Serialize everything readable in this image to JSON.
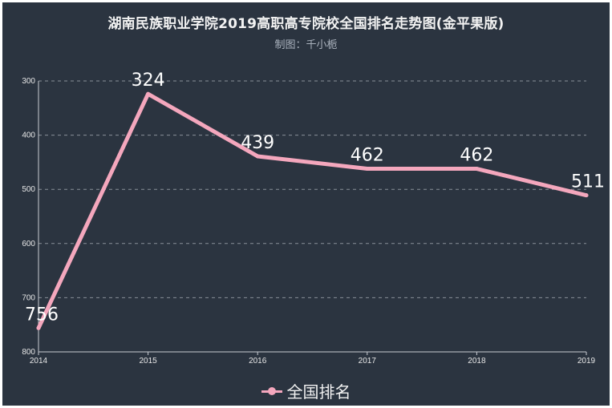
{
  "chart_data": {
    "type": "line",
    "title": "湖南民族职业学院2019高职高专院校全国排名走势图(金平果版)",
    "subtitle": "制图：千小栀",
    "categories": [
      "2014",
      "2015",
      "2016",
      "2017",
      "2018",
      "2019"
    ],
    "series": [
      {
        "name": "全国排名",
        "values": [
          756,
          324,
          439,
          462,
          462,
          511
        ]
      }
    ],
    "y_ticks": [
      "300",
      "400",
      "500",
      "600",
      "700",
      "800"
    ],
    "ylim": [
      300,
      800
    ],
    "y_inverted": true,
    "grid": true,
    "legend_position": "bottom-center",
    "colors": {
      "background": "#2b3440",
      "line": "#f4a7bd",
      "grid": "#8a9099"
    }
  }
}
